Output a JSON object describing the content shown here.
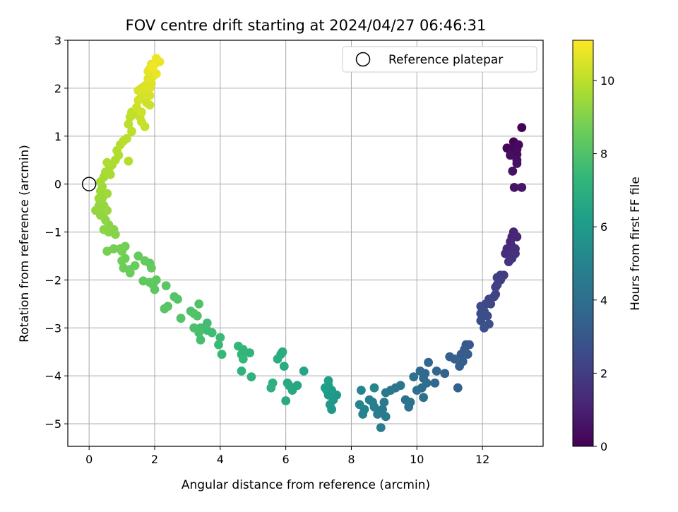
{
  "chart_data": {
    "type": "scatter",
    "title": "FOV centre drift starting at 2024/04/27 06:46:31",
    "xlabel": "Angular distance from reference (arcmin)",
    "ylabel": "Rotation from reference (arcmin)",
    "xlim": [
      -0.65,
      13.85
    ],
    "ylim": [
      -5.47,
      3.0
    ],
    "xticks": [
      0,
      2,
      4,
      6,
      8,
      10,
      12
    ],
    "yticks": [
      -5,
      -4,
      -3,
      -2,
      -1,
      0,
      1,
      2,
      3
    ],
    "grid": true,
    "legend": {
      "placement": "top-right",
      "entries": [
        "Reference platepar"
      ]
    },
    "reference_point": {
      "x": 0,
      "y": 0
    },
    "colorbar": {
      "label": "Hours from first FF file",
      "colormap": "viridis",
      "range": [
        0,
        11.1
      ],
      "ticks": [
        0,
        2,
        4,
        6,
        8,
        10
      ]
    },
    "series": [
      {
        "points": [
          [
            13.2,
            1.18,
            0.05
          ],
          [
            12.95,
            0.88,
            0.1
          ],
          [
            12.75,
            0.75,
            0.15
          ],
          [
            12.9,
            0.72,
            0.2
          ],
          [
            13.05,
            0.72,
            0.25
          ],
          [
            13.1,
            0.82,
            0.3
          ],
          [
            13.05,
            0.62,
            0.35
          ],
          [
            12.85,
            0.6,
            0.4
          ],
          [
            13.05,
            0.5,
            0.45
          ],
          [
            13.05,
            0.43,
            0.5
          ],
          [
            12.92,
            0.27,
            0.55
          ],
          [
            12.97,
            -0.07,
            0.6
          ],
          [
            13.2,
            -0.07,
            0.65
          ],
          [
            12.95,
            -1.0,
            1.1
          ],
          [
            12.9,
            -1.1,
            1.15
          ],
          [
            13.05,
            -1.1,
            1.2
          ],
          [
            12.85,
            -1.2,
            1.25
          ],
          [
            12.9,
            -1.3,
            1.3
          ],
          [
            12.75,
            -1.35,
            1.35
          ],
          [
            13.0,
            -1.35,
            1.4
          ],
          [
            12.7,
            -1.45,
            1.45
          ],
          [
            12.85,
            -1.45,
            1.5
          ],
          [
            13.0,
            -1.45,
            1.55
          ],
          [
            12.9,
            -1.55,
            1.6
          ],
          [
            12.8,
            -1.62,
            1.65
          ],
          [
            12.55,
            -1.9,
            1.9
          ],
          [
            12.65,
            -1.9,
            1.95
          ],
          [
            12.45,
            -1.95,
            2.0
          ],
          [
            12.55,
            -2.0,
            2.05
          ],
          [
            12.45,
            -2.1,
            2.1
          ],
          [
            12.4,
            -2.15,
            2.15
          ],
          [
            12.4,
            -2.3,
            2.2
          ],
          [
            12.35,
            -2.35,
            2.25
          ],
          [
            12.2,
            -2.4,
            2.3
          ],
          [
            12.25,
            -2.5,
            2.35
          ],
          [
            12.1,
            -2.5,
            2.4
          ],
          [
            11.95,
            -2.55,
            2.45
          ],
          [
            12.05,
            -2.65,
            2.5
          ],
          [
            11.95,
            -2.7,
            2.55
          ],
          [
            12.15,
            -2.75,
            2.6
          ],
          [
            11.95,
            -2.85,
            2.65
          ],
          [
            12.2,
            -2.92,
            2.7
          ],
          [
            12.05,
            -3.0,
            2.75
          ],
          [
            11.5,
            -3.35,
            3.05
          ],
          [
            11.6,
            -3.35,
            3.1
          ],
          [
            11.45,
            -3.45,
            3.15
          ],
          [
            11.35,
            -3.55,
            3.2
          ],
          [
            11.55,
            -3.55,
            3.25
          ],
          [
            11.4,
            -3.7,
            3.3
          ],
          [
            11.3,
            -3.8,
            3.35
          ],
          [
            11.0,
            -3.6,
            3.4
          ],
          [
            11.15,
            -3.65,
            3.45
          ],
          [
            11.25,
            -4.25,
            3.5
          ],
          [
            10.85,
            -3.95,
            3.55
          ],
          [
            10.6,
            -3.9,
            3.6
          ],
          [
            10.35,
            -3.72,
            3.65
          ],
          [
            10.55,
            -4.15,
            3.7
          ],
          [
            10.1,
            -3.9,
            3.75
          ],
          [
            10.25,
            -3.95,
            3.8
          ],
          [
            10.2,
            -4.05,
            3.85
          ],
          [
            10.3,
            -4.15,
            3.9
          ],
          [
            10.15,
            -4.25,
            3.95
          ],
          [
            9.9,
            -4.02,
            4.0
          ],
          [
            10.0,
            -4.3,
            4.05
          ],
          [
            10.2,
            -4.45,
            4.1
          ],
          [
            9.65,
            -4.5,
            4.15
          ],
          [
            9.8,
            -4.55,
            4.2
          ],
          [
            9.75,
            -4.65,
            4.25
          ],
          [
            9.5,
            -4.2,
            4.3
          ],
          [
            9.35,
            -4.25,
            4.35
          ],
          [
            9.2,
            -4.3,
            4.4
          ],
          [
            9.05,
            -4.35,
            4.45
          ],
          [
            9.0,
            -4.55,
            4.5
          ],
          [
            8.95,
            -4.7,
            4.55
          ],
          [
            9.05,
            -4.85,
            4.6
          ],
          [
            8.9,
            -5.08,
            4.65
          ],
          [
            8.8,
            -4.8,
            4.7
          ],
          [
            8.7,
            -4.65,
            4.75
          ],
          [
            8.55,
            -4.5,
            4.8
          ],
          [
            8.65,
            -4.55,
            4.85
          ],
          [
            8.4,
            -4.7,
            4.9
          ],
          [
            8.35,
            -4.8,
            4.95
          ],
          [
            8.25,
            -4.6,
            5.0
          ],
          [
            8.3,
            -4.3,
            5.05
          ],
          [
            8.7,
            -4.25,
            5.1
          ],
          [
            7.55,
            -4.4,
            5.8
          ],
          [
            7.45,
            -4.5,
            5.85
          ],
          [
            7.35,
            -4.6,
            5.9
          ],
          [
            7.4,
            -4.7,
            5.95
          ],
          [
            7.3,
            -4.4,
            6.0
          ],
          [
            7.25,
            -4.3,
            6.05
          ],
          [
            7.4,
            -4.3,
            6.1
          ],
          [
            7.3,
            -4.2,
            6.15
          ],
          [
            7.2,
            -4.25,
            6.2
          ],
          [
            7.3,
            -4.1,
            6.25
          ],
          [
            6.55,
            -3.9,
            6.5
          ],
          [
            6.35,
            -4.2,
            6.55
          ],
          [
            6.2,
            -4.3,
            6.6
          ],
          [
            6.1,
            -4.2,
            6.65
          ],
          [
            6.05,
            -4.15,
            6.7
          ],
          [
            6.0,
            -4.52,
            6.75
          ],
          [
            5.95,
            -3.8,
            6.8
          ],
          [
            5.9,
            -3.5,
            6.85
          ],
          [
            5.85,
            -3.55,
            6.9
          ],
          [
            5.75,
            -3.65,
            6.95
          ],
          [
            5.6,
            -4.15,
            7.0
          ],
          [
            5.55,
            -4.25,
            7.05
          ],
          [
            4.95,
            -4.02,
            7.1
          ],
          [
            4.65,
            -3.9,
            7.15
          ],
          [
            4.9,
            -3.52,
            7.2
          ],
          [
            4.7,
            -3.45,
            7.25
          ],
          [
            4.65,
            -3.55,
            7.3
          ],
          [
            4.55,
            -3.38,
            7.35
          ],
          [
            4.7,
            -3.65,
            7.4
          ],
          [
            4.05,
            -3.55,
            7.45
          ],
          [
            3.95,
            -3.35,
            7.5
          ],
          [
            4.0,
            -3.2,
            7.55
          ],
          [
            3.75,
            -3.1,
            7.6
          ],
          [
            3.6,
            -3.05,
            7.65
          ],
          [
            3.6,
            -2.9,
            7.7
          ],
          [
            3.4,
            -3.0,
            7.75
          ],
          [
            3.4,
            -3.25,
            7.8
          ],
          [
            3.35,
            -3.1,
            7.85
          ],
          [
            3.2,
            -3.0,
            7.9
          ],
          [
            3.1,
            -2.65,
            7.95
          ],
          [
            3.3,
            -2.75,
            7.98
          ],
          [
            3.35,
            -2.5,
            8.01
          ],
          [
            3.2,
            -2.7,
            8.04
          ],
          [
            2.8,
            -2.8,
            8.07
          ],
          [
            2.6,
            -2.35,
            8.1
          ],
          [
            2.7,
            -2.4,
            8.13
          ],
          [
            2.4,
            -2.55,
            8.16
          ],
          [
            2.3,
            -2.6,
            8.19
          ],
          [
            2.35,
            -2.12,
            8.22
          ],
          [
            2.0,
            -2.2,
            8.25
          ],
          [
            1.95,
            -2.1,
            8.28
          ],
          [
            2.05,
            -2.0,
            8.31
          ],
          [
            1.85,
            -2.05,
            8.34
          ],
          [
            1.65,
            -2.02,
            8.37
          ],
          [
            1.85,
            -1.65,
            8.4
          ],
          [
            1.9,
            -1.75,
            8.43
          ],
          [
            1.7,
            -1.6,
            8.46
          ],
          [
            1.5,
            -1.5,
            8.49
          ],
          [
            1.4,
            -1.7,
            8.52
          ],
          [
            1.25,
            -1.78,
            8.55
          ],
          [
            1.25,
            -1.85,
            8.58
          ],
          [
            1.05,
            -1.75,
            8.61
          ],
          [
            1.1,
            -1.55,
            8.64
          ],
          [
            1.0,
            -1.6,
            8.67
          ],
          [
            1.0,
            -1.4,
            8.7
          ],
          [
            1.1,
            -1.3,
            8.73
          ],
          [
            0.95,
            -1.35,
            8.76
          ],
          [
            0.75,
            -1.35,
            8.79
          ],
          [
            0.55,
            -1.4,
            8.82
          ],
          [
            0.8,
            -1.05,
            9.05
          ],
          [
            0.75,
            -0.95,
            9.08
          ],
          [
            0.6,
            -1.0,
            9.11
          ],
          [
            0.45,
            -0.95,
            9.14
          ],
          [
            0.6,
            -0.85,
            9.17
          ],
          [
            0.5,
            -0.75,
            9.2
          ],
          [
            0.45,
            -0.6,
            9.23
          ],
          [
            0.35,
            -0.65,
            9.26
          ],
          [
            0.2,
            -0.55,
            9.29
          ],
          [
            0.3,
            -0.45,
            9.32
          ],
          [
            0.45,
            -0.45,
            9.35
          ],
          [
            0.55,
            -0.55,
            9.38
          ],
          [
            0.4,
            -0.3,
            9.41
          ],
          [
            0.3,
            -0.3,
            9.44
          ],
          [
            0.35,
            -0.15,
            9.47
          ],
          [
            0.55,
            -0.2,
            9.5
          ],
          [
            0.4,
            -0.05,
            9.53
          ],
          [
            0.35,
            0.05,
            9.56
          ],
          [
            0.45,
            0.15,
            9.59
          ],
          [
            0.5,
            0.25,
            9.62
          ],
          [
            0.65,
            0.2,
            9.65
          ],
          [
            0.6,
            0.3,
            9.68
          ],
          [
            0.7,
            0.4,
            9.71
          ],
          [
            0.55,
            0.45,
            9.74
          ],
          [
            0.8,
            0.5,
            9.77
          ],
          [
            0.9,
            0.6,
            9.8
          ],
          [
            0.85,
            0.7,
            9.83
          ],
          [
            1.2,
            0.48,
            9.86
          ],
          [
            0.95,
            0.82,
            9.89
          ],
          [
            1.05,
            0.9,
            9.92
          ],
          [
            1.15,
            0.95,
            9.95
          ],
          [
            1.3,
            1.1,
            9.98
          ],
          [
            1.2,
            1.25,
            10.01
          ],
          [
            1.25,
            1.4,
            10.04
          ],
          [
            1.3,
            1.5,
            10.07
          ],
          [
            1.35,
            1.45,
            10.1
          ],
          [
            1.55,
            1.4,
            10.13
          ],
          [
            1.7,
            1.2,
            10.16
          ],
          [
            1.6,
            1.3,
            10.19
          ],
          [
            1.45,
            1.6,
            10.22
          ],
          [
            1.6,
            1.5,
            10.25
          ],
          [
            1.75,
            1.7,
            10.28
          ],
          [
            1.85,
            1.65,
            10.31
          ],
          [
            1.5,
            1.75,
            10.34
          ],
          [
            1.6,
            1.85,
            10.37
          ],
          [
            1.75,
            1.9,
            10.4
          ],
          [
            1.85,
            1.85,
            10.43
          ],
          [
            1.6,
            2.0,
            10.46
          ],
          [
            1.5,
            1.95,
            10.49
          ],
          [
            1.7,
            2.05,
            10.52
          ],
          [
            1.85,
            2.0,
            10.55
          ],
          [
            1.9,
            2.1,
            10.58
          ],
          [
            1.8,
            2.2,
            10.61
          ],
          [
            1.95,
            2.25,
            10.64
          ],
          [
            1.8,
            2.35,
            10.67
          ],
          [
            1.85,
            2.4,
            10.7
          ],
          [
            1.9,
            2.5,
            10.73
          ],
          [
            2.05,
            2.3,
            10.76
          ],
          [
            2.0,
            2.5,
            10.79
          ],
          [
            2.15,
            2.55,
            10.82
          ],
          [
            2.05,
            2.62,
            10.85
          ],
          [
            1.95,
            2.45,
            10.88
          ]
        ]
      }
    ]
  }
}
